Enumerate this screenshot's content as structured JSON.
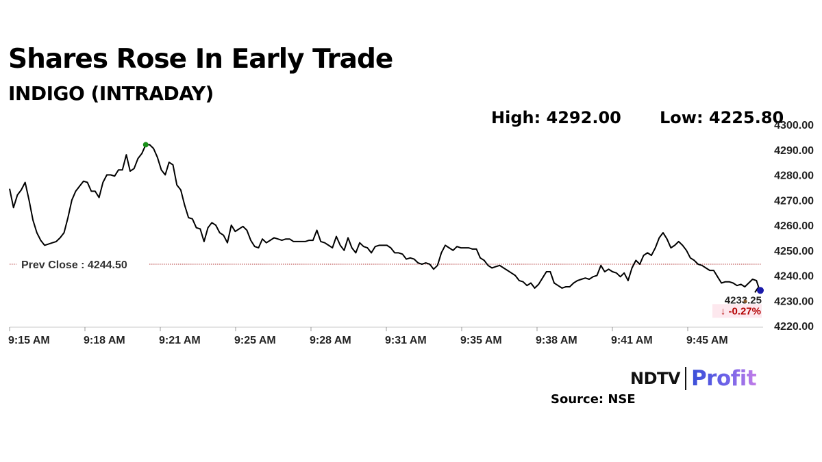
{
  "title": "Shares Rose In Early Trade",
  "subtitle": "INDIGO (INTRADAY)",
  "stats": {
    "high_label": "High: 4292.00",
    "low_label": "Low: 4225.80"
  },
  "source": "Source: NSE",
  "logo": {
    "brand": "NDTV",
    "product": "Profit"
  },
  "colors": {
    "line": "#000000",
    "high_marker": "#1a8f1a",
    "current_marker": "#1a1aaa",
    "prev_close_line": "#b33a3a",
    "change_negative": "#b30000",
    "change_bg": "#fde8ee"
  },
  "chart_data": {
    "type": "line",
    "title": "INDIGO (INTRADAY)",
    "xlabel": "",
    "ylabel": "",
    "x_start": "9:15 AM",
    "x_end": "9:48 AM",
    "ylim": [
      4220,
      4300
    ],
    "y_ticks": [
      "4220.00",
      "4230.00",
      "4240.00",
      "4250.00",
      "4260.00",
      "4270.00",
      "4280.00",
      "4290.00",
      "4300.00"
    ],
    "x_ticks": [
      "9:15 AM",
      "9:18 AM",
      "9:21 AM",
      "9:25 AM",
      "9:28 AM",
      "9:31 AM",
      "9:35 AM",
      "9:38 AM",
      "9:41 AM",
      "9:45 AM"
    ],
    "grid": false,
    "prev_close": {
      "label": "Prev Close : 4244.50",
      "value": 4244.5
    },
    "high": 4292.0,
    "low": 4225.8,
    "last": {
      "label": "4233.25",
      "value": 4233.25,
      "change": "↓ -0.27%"
    },
    "series": [
      {
        "values": [
          4274.5,
          4267,
          4272,
          4274,
          4277,
          4270,
          4262,
          4257,
          4254,
          4252,
          4252.5,
          4253,
          4253.5,
          4255,
          4257,
          4263,
          4270,
          4273.5,
          4275.5,
          4277.5,
          4277,
          4273.5,
          4273.5,
          4271,
          4277,
          4280,
          4280,
          4279.5,
          4282,
          4282,
          4288,
          4281.5,
          4282.5,
          4286.5,
          4288.5,
          4292,
          4292,
          4290.5,
          4287,
          4282,
          4280,
          4285,
          4284,
          4276,
          4274,
          4268,
          4263,
          4262.5,
          4259,
          4258.5,
          4253.5,
          4259,
          4261,
          4260,
          4257,
          4256,
          4253,
          4260,
          4257.5,
          4258.5,
          4259.5,
          4258,
          4254,
          4251.5,
          4251,
          4254.5,
          4253,
          4254,
          4255,
          4254.5,
          4254,
          4254.5,
          4254.5,
          4253.5,
          4253.5,
          4253.5,
          4253.5,
          4254,
          4254,
          4258,
          4253.5,
          4253,
          4252,
          4251,
          4255.5,
          4252,
          4250,
          4255,
          4251,
          4249,
          4253,
          4251.5,
          4251,
          4249,
          4251.5,
          4252,
          4252,
          4252,
          4251,
          4249,
          4249,
          4248.5,
          4246.5,
          4247,
          4246.5,
          4245,
          4244.5,
          4245,
          4244.5,
          4242.5,
          4244,
          4249,
          4252,
          4251,
          4250,
          4251.5,
          4251,
          4251,
          4251,
          4250.5,
          4250.5,
          4247,
          4246,
          4244,
          4243,
          4243.5,
          4244,
          4243,
          4242,
          4241,
          4240,
          4238,
          4237.5,
          4236,
          4237,
          4235,
          4236.5,
          4239,
          4241.5,
          4241.5,
          4237,
          4236,
          4235,
          4235.5,
          4235.5,
          4237,
          4238,
          4238.5,
          4239,
          4238.5,
          4239.5,
          4240,
          4244,
          4241.5,
          4242.5,
          4241.5,
          4241,
          4239.5,
          4241,
          4238,
          4243,
          4246,
          4244.5,
          4248,
          4249,
          4248,
          4251,
          4255,
          4257,
          4254.5,
          4251,
          4252,
          4253.5,
          4252,
          4250,
          4247,
          4246,
          4244.5,
          4244,
          4243,
          4242,
          4242,
          4239.5,
          4237,
          4237.5,
          4237.5,
          4237,
          4236,
          4236.5,
          4235.5,
          4237,
          4238.5,
          4238,
          4233.25
        ]
      }
    ]
  }
}
